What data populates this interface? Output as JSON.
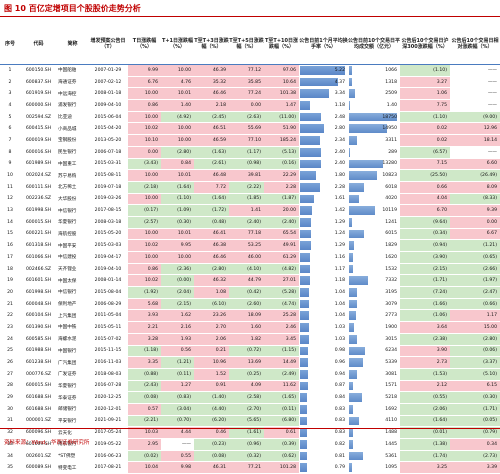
{
  "title": "图 10  百亿定增项目个股股价走势分析",
  "source": "资料来源：Wind，华西证券研究所",
  "headers": [
    "序号",
    "代码",
    "简称",
    "增发预案公告日（T）",
    "T日涨跌幅（%）",
    "T+1日涨跌幅（%）",
    "T至T+3日涨跌幅（%）",
    "T至T+5日涨跌幅（%）",
    "T至T+10日涨跌幅（%）",
    "公告日前1个月平均换手率（%）",
    "公告日前10个交易日平均成交额（亿元）",
    "公告后10个交易日沪深300涨跌幅（%）",
    "公告后10个交易日相对涨跌幅（%）"
  ],
  "rows": [
    [
      "1",
      "600150.SH",
      "中国船舶",
      "2007-01-29",
      "9.99",
      "10.00",
      "46.39",
      "77.12",
      "97.06",
      "5.22",
      "1066",
      "(1.10)",
      "——"
    ],
    [
      "2",
      "600837.SH",
      "海通证券",
      "2007-02-12",
      "6.76",
      "4.76",
      "35.32",
      "35.85",
      "10.64",
      "4.37",
      "1318",
      "3.27",
      "——"
    ],
    [
      "3",
      "601919.SH",
      "中远海控",
      "2008-01-18",
      "10.00",
      "10.01",
      "46.46",
      "77.24",
      "101.38",
      "3.34",
      "2509",
      "1.06",
      "——"
    ],
    [
      "4",
      "600000.SH",
      "浦发银行",
      "2009-04-10",
      "0.86",
      "1.40",
      "2.18",
      "0.00",
      "1.47",
      "1.18",
      "1.40",
      "7.75",
      "——"
    ],
    [
      "5",
      "002594.SZ",
      "比亚迪",
      "2015-06-04",
      "10.00",
      "(4.92)",
      "(2.45)",
      "(2.63)",
      "(11.00)",
      "2.48",
      "18750",
      "(1.10)",
      "(9.00)"
    ],
    [
      "6",
      "600415.SH",
      "小商品城",
      "2015-04-20",
      "10.02",
      "10.00",
      "46.51",
      "55.69",
      "51.90",
      "2.80",
      "14950",
      "0.02",
      "12.96"
    ],
    [
      "7",
      "600019.SH",
      "宝钢股份",
      "2013-05-20",
      "10.10",
      "10.00",
      "46.59",
      "77.10",
      "185.24",
      "2.34",
      "3311",
      "0.02",
      "18.14"
    ],
    [
      "8",
      "600016.SH",
      "民生银行",
      "2006-07-18",
      "0.00",
      "(2.80)",
      "(1.63)",
      "(1.17)",
      "(5.13)",
      "2.40",
      "289",
      "(6.57)",
      "——"
    ],
    [
      "9",
      "601989.SH",
      "中国重工",
      "2015-03-31",
      "(3.43)",
      "0.84",
      "(2.61)",
      "(0.98)",
      "(0.16)",
      "2.40",
      "13280",
      "7.15",
      "6.60"
    ],
    [
      "10",
      "002024.SZ",
      "苏宁易购",
      "2015-08-11",
      "10.00",
      "10.01",
      "46.48",
      "39.81",
      "22.29",
      "1.80",
      "10823",
      "(25.50)",
      "(26.49)"
    ],
    [
      "11",
      "600111.SH",
      "北方稀土",
      "2019-07-18",
      "(2.18)",
      "(1.64)",
      "7.72",
      "(2.22)",
      "2.28",
      "2.28",
      "6018",
      "0.66",
      "8.09"
    ],
    [
      "12",
      "002236.SZ",
      "大华股份",
      "2019-03-26",
      "10.00",
      "(1.10)",
      "(1.64)",
      "(1.85)",
      "(1.87)",
      "1.61",
      "4020",
      "4.04",
      "(8.33)"
    ],
    [
      "13",
      "601998.SH",
      "中信银行",
      "2017-08-15",
      "(0.17)",
      "(1.09)",
      "(1.72)",
      "1.41",
      "20.00",
      "1.42",
      "10119",
      "6.70",
      "9.39"
    ],
    [
      "14",
      "600015.SH",
      "华夏银行",
      "2008-03-18",
      "(2.57)",
      "(0.30)",
      "(0.48)",
      "(2.40)",
      "(2.40)",
      "1.29",
      "1241",
      "(9.64)",
      "0.00"
    ],
    [
      "15",
      "600221.SH",
      "海航控股",
      "2015-05-20",
      "10.00",
      "10.01",
      "46.41",
      "77.18",
      "65.54",
      "1.24",
      "6015",
      "(0.34)",
      "6.67"
    ],
    [
      "16",
      "601318.SH",
      "中国平安",
      "2015-03-03",
      "10.02",
      "9.95",
      "46.38",
      "53.25",
      "49.91",
      "1.29",
      "1829",
      "(0.94)",
      "(1.21)"
    ],
    [
      "17",
      "601066.SH",
      "中信建投",
      "2019-04-17",
      "10.00",
      "10.00",
      "46.46",
      "46.00",
      "61.29",
      "1.16",
      "1620",
      "(3.90)",
      "(0.65)"
    ],
    [
      "18",
      "002466.SZ",
      "天齐锂业",
      "2019-04-10",
      "0.86",
      "(2.36)",
      "(2.80)",
      "(4.10)",
      "(4.82)",
      "1.17",
      "1532",
      "(2.15)",
      "(2.66)"
    ],
    [
      "19",
      "601601.SH",
      "中国太保",
      "2008-01-14",
      "10.02",
      "(0.00)",
      "46.32",
      "44.79",
      "27.01",
      "1.18",
      "7332",
      "(1.71)",
      "(1.97)"
    ],
    [
      "20",
      "601998.SH",
      "中信银行",
      "2015-08-04",
      "(1.92)",
      "(2.04)",
      "1.08",
      "(0.42)",
      "(5.28)",
      "1.04",
      "3195",
      "(7.24)",
      "(2.47)"
    ],
    [
      "21",
      "600048.SH",
      "保利地产",
      "2006-08-29",
      "5.68",
      "(2.15)",
      "(6.10)",
      "(2.60)",
      "(4.74)",
      "1.04",
      "3079",
      "(1.66)",
      "(0.66)"
    ],
    [
      "22",
      "600104.SH",
      "上汽集团",
      "2011-05-04",
      "3.93",
      "1.62",
      "23.26",
      "18.09",
      "25.28",
      "1.04",
      "2773",
      "(1.06)",
      "1.17"
    ],
    [
      "23",
      "601390.SH",
      "中国中铁",
      "2015-05-11",
      "2.21",
      "2.16",
      "2.70",
      "1.60",
      "2.46",
      "1.03",
      "1900",
      "3.64",
      "15.00"
    ],
    [
      "24",
      "600585.SH",
      "海螺水泥",
      "2015-07-02",
      "3.28",
      "1.93",
      "2.06",
      "1.82",
      "3.45",
      "1.03",
      "3015",
      "(2.38)",
      "(2.80)"
    ],
    [
      "25",
      "601988.SH",
      "中国银行",
      "2015-11-15",
      "(1.18)",
      "0.56",
      "0.21",
      "(0.72)",
      "(1.15)",
      "0.98",
      "6234",
      "3.90",
      "(0.06)"
    ],
    [
      "26",
      "601238.SH",
      "广汽集团",
      "2016-11-03",
      "3.35",
      "(1.21)",
      "10.96",
      "13.69",
      "14.49",
      "0.96",
      "5339",
      "2.73",
      "(3.37)"
    ],
    [
      "27",
      "000776.SZ",
      "广发证券",
      "2018-08-03",
      "(0.88)",
      "(0.11)",
      "1.52",
      "(0.25)",
      "(2.49)",
      "0.94",
      "3081",
      "(1.53)",
      "(5.10)"
    ],
    [
      "28",
      "600015.SH",
      "华夏银行",
      "2016-07-28",
      "(2.43)",
      "1.27",
      "0.91",
      "4.09",
      "11.62",
      "0.87",
      "1571",
      "2.12",
      "6.15"
    ],
    [
      "29",
      "601688.SH",
      "华泰证券",
      "2020-12-25",
      "(0.08)",
      "(0.83)",
      "(1.40)",
      "(2.58)",
      "(1.65)",
      "0.84",
      "5218",
      "(0.55)",
      "(0.30)"
    ],
    [
      "30",
      "601688.SH",
      "邮储银行",
      "2020-12-01",
      "0.57",
      "(3.04)",
      "(4.40)",
      "(2.70)",
      "(0.11)",
      "0.83",
      "1692",
      "(2.06)",
      "(1.71)"
    ],
    [
      "31",
      "000001.SZ",
      "平安银行",
      "2021-09-21",
      "(2.21)",
      "(0.70)",
      "(6.20)",
      "(5.65)",
      "(6.80)",
      "0.83",
      "4110",
      "(1.64)",
      "(0.05)"
    ],
    [
      "32",
      "600096.SH",
      "云天化",
      "2017-05-24",
      "10.03",
      "4.44",
      "0.46",
      "(1.61)",
      "0.61",
      "0.83",
      "1488",
      "(0.01)",
      "(0.79)"
    ],
    [
      "33",
      "601009.SH",
      "南京银行",
      "2019-05-22",
      "2.95",
      "——",
      "(0.23)",
      "(0.96)",
      "(0.39)",
      "0.82",
      "1445",
      "(1.38)",
      "0.34"
    ],
    [
      "34",
      "002601.SZ",
      "*ST佛塑",
      "2016-06-23",
      "(0.02)",
      "0.55",
      "(0.08)",
      "(0.32)",
      "(0.62)",
      "0.81",
      "5361",
      "(1.74)",
      "(2.73)"
    ],
    [
      "35",
      "600089.SH",
      "特变电工",
      "2017-08-21",
      "10.04",
      "9.98",
      "46.31",
      "77.21",
      "101.28",
      "0.79",
      "1095",
      "3.25",
      "3.39"
    ]
  ]
}
